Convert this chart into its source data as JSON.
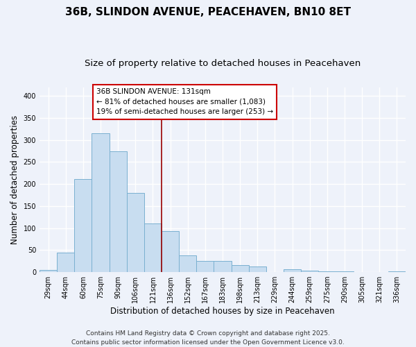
{
  "title": "36B, SLINDON AVENUE, PEACEHAVEN, BN10 8ET",
  "subtitle": "Size of property relative to detached houses in Peacehaven",
  "xlabel": "Distribution of detached houses by size in Peacehaven",
  "ylabel": "Number of detached properties",
  "bar_color": "#c8ddf0",
  "bar_edge_color": "#7ab0d0",
  "background_color": "#eef2fa",
  "grid_color": "#ffffff",
  "categories": [
    "29sqm",
    "44sqm",
    "60sqm",
    "75sqm",
    "90sqm",
    "106sqm",
    "121sqm",
    "136sqm",
    "152sqm",
    "167sqm",
    "183sqm",
    "198sqm",
    "213sqm",
    "229sqm",
    "244sqm",
    "259sqm",
    "275sqm",
    "290sqm",
    "305sqm",
    "321sqm",
    "336sqm"
  ],
  "values": [
    5,
    44,
    212,
    315,
    275,
    179,
    110,
    93,
    38,
    25,
    25,
    16,
    13,
    0,
    6,
    3,
    2,
    1,
    0,
    0,
    2
  ],
  "ylim": [
    0,
    420
  ],
  "yticks": [
    0,
    50,
    100,
    150,
    200,
    250,
    300,
    350,
    400
  ],
  "vline_color": "#990000",
  "annotation_title": "36B SLINDON AVENUE: 131sqm",
  "annotation_line1": "← 81% of detached houses are smaller (1,083)",
  "annotation_line2": "19% of semi-detached houses are larger (253) →",
  "annotation_box_color": "white",
  "annotation_box_edge": "#cc0000",
  "footer_line1": "Contains HM Land Registry data © Crown copyright and database right 2025.",
  "footer_line2": "Contains public sector information licensed under the Open Government Licence v3.0.",
  "title_fontsize": 11,
  "subtitle_fontsize": 9.5,
  "axis_label_fontsize": 8.5,
  "tick_fontsize": 7,
  "annotation_fontsize": 7.5,
  "footer_fontsize": 6.5
}
